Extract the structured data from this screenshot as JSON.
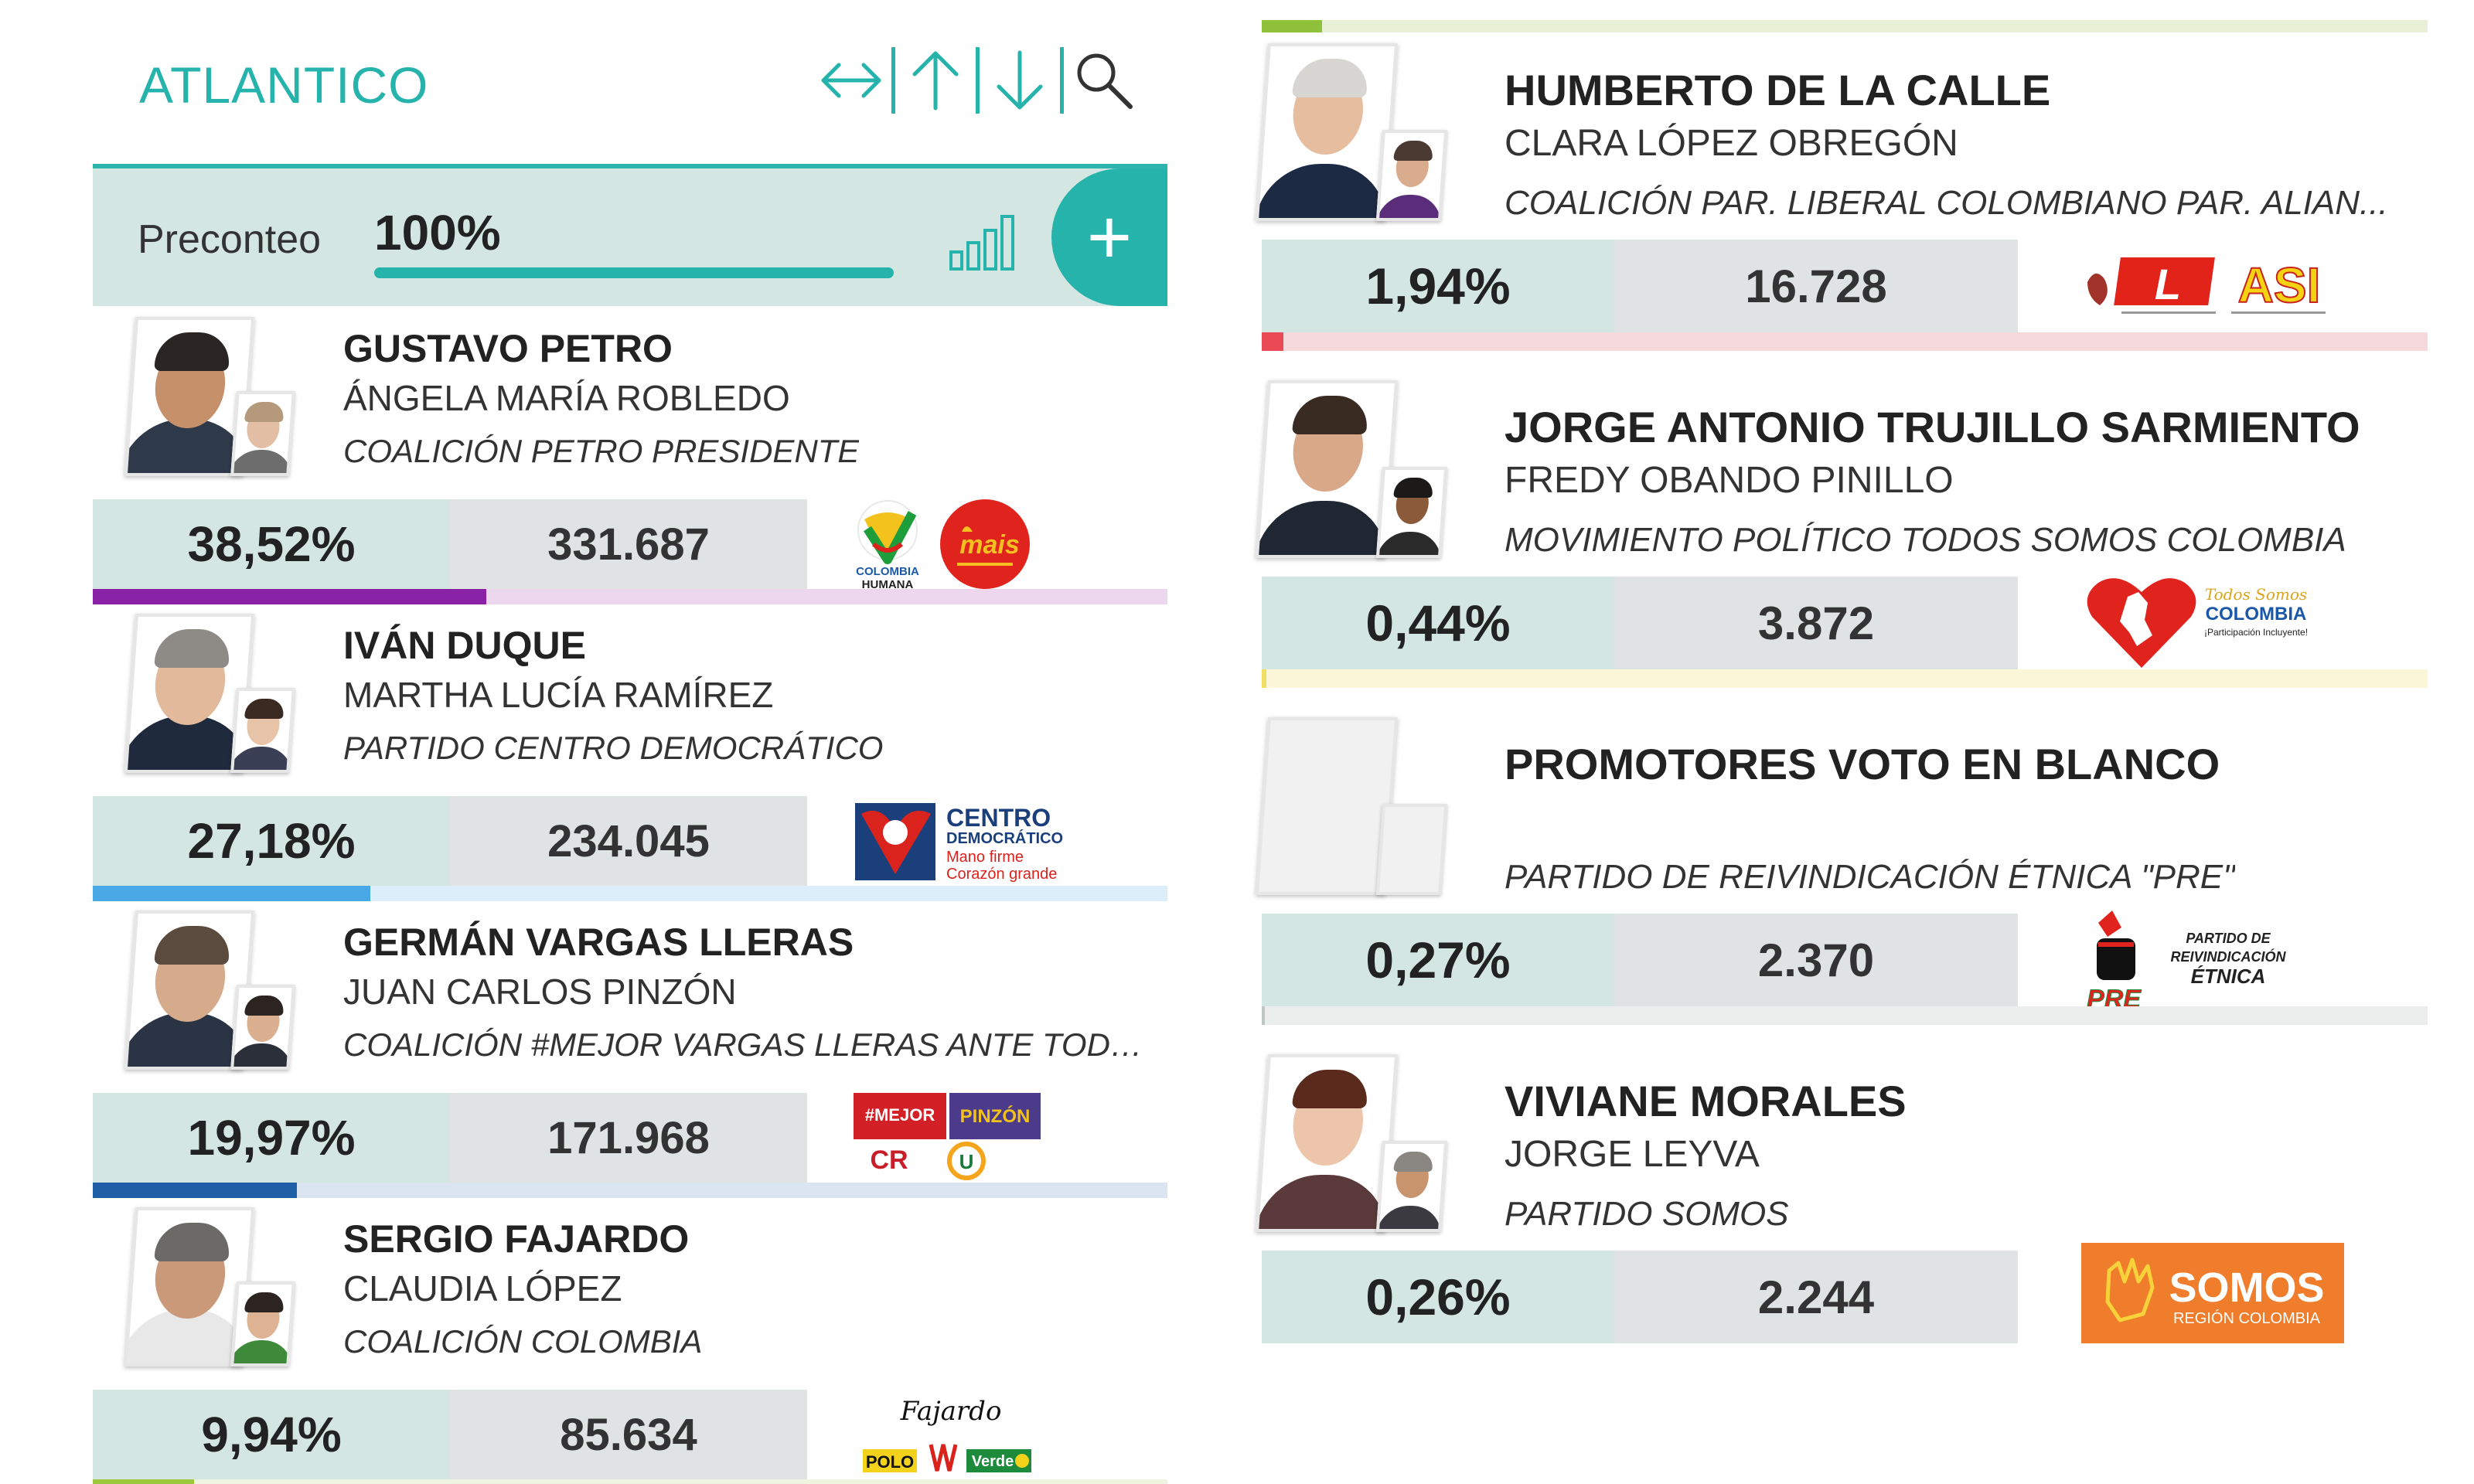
{
  "header": {
    "title": "ATLANTICO",
    "tools": [
      "horizontal-arrows-icon",
      "arrow-up-icon",
      "arrow-down-icon",
      "search-icon"
    ]
  },
  "preconteo": {
    "label": "Preconteo",
    "percent": "100%",
    "progress": 1.0,
    "icons": [
      "bar-chart-icon",
      "plus-icon"
    ],
    "add_label": "+"
  },
  "left_candidates": [
    {
      "name": "GUSTAVO PETRO",
      "vice": "ÁNGELA MARÍA ROBLEDO",
      "party": "COALICIÓN PETRO PRESIDENTE",
      "percent": "38,52%",
      "votes": "331.687",
      "share": 0.3852,
      "bar_color": "#8a22a8",
      "track_color": "#ecd7ef",
      "logos": [
        {
          "text": "COLOMBIA HUMANA",
          "type": "colombia-humana"
        },
        {
          "text": "mais",
          "type": "mais"
        }
      ]
    },
    {
      "name": "IVÁN DUQUE",
      "vice": "MARTHA LUCÍA RAMÍREZ",
      "party": "PARTIDO CENTRO DEMOCRÁTICO",
      "percent": "27,18%",
      "votes": "234.045",
      "share": 0.2718,
      "bar_color": "#49a9e6",
      "track_color": "#dbeef9",
      "logos": [
        {
          "title": "CENTRO",
          "subtitle": "DEMOCRÁTICO",
          "line3": "Mano firme",
          "line4": "Corazón grande",
          "type": "centro"
        }
      ]
    },
    {
      "name": "GERMÁN VARGAS LLERAS",
      "vice": "JUAN CARLOS PINZÓN",
      "party": "COALICIÓN #MEJOR VARGAS LLERAS ANTE TODO C...",
      "percent": "19,97%",
      "votes": "171.968",
      "share": 0.1997,
      "bar_color": "#1f5fa8",
      "track_color": "#dbe5f1",
      "logos": [
        {
          "a": "#MEJOR",
          "b": "PINZÓN",
          "c": "CR",
          "d": "U",
          "type": "vargas"
        }
      ]
    },
    {
      "name": "SERGIO FAJARDO",
      "vice": "CLAUDIA LÓPEZ",
      "party": "COALICIÓN COLOMBIA",
      "percent": "9,94%",
      "votes": "85.634",
      "share": 0.0994,
      "bar_color": "#9bc83c",
      "track_color": "#eef4df",
      "logos": [
        {
          "sig": "Fajardo",
          "polo": "POLO",
          "verde": "Verde",
          "type": "fajardo"
        }
      ]
    }
  ],
  "right_candidates": [
    {
      "name": "HUMBERTO DE LA CALLE",
      "vice": "CLARA LÓPEZ OBREGÓN",
      "party": "COALICIÓN PAR. LIBERAL COLOMBIANO PAR. ALIAN...",
      "percent": "1,94%",
      "votes": "16.728",
      "share": 0.0194,
      "bar_color": "#e94a55",
      "track_color": "#f6d9dc",
      "logos": [
        {
          "l": "L",
          "asi": "ASI",
          "type": "liberal"
        }
      ]
    },
    {
      "name": "JORGE ANTONIO TRUJILLO SARMIENTO",
      "vice": "FREDY OBANDO PINILLO",
      "party": "MOVIMIENTO POLÍTICO TODOS SOMOS COLOMBIA",
      "percent": "0,44%",
      "votes": "3.872",
      "share": 0.0044,
      "bar_color": "#f1df60",
      "track_color": "#fbf6d8",
      "logos": [
        {
          "a": "Todos Somos",
          "b": "COLOMBIA",
          "c": "¡Participación Incluyente!",
          "type": "todos"
        }
      ]
    },
    {
      "name": "PROMOTORES VOTO EN BLANCO",
      "vice": "",
      "party": "PARTIDO DE REIVINDICACIÓN ÉTNICA \"PRE\"",
      "percent": "0,27%",
      "votes": "2.370",
      "share": 0.0027,
      "bar_color": "#bfc7c5",
      "track_color": "#eceeee",
      "logos": [
        {
          "pre": "PRE",
          "l1": "PARTIDO DE",
          "l2": "REIVINDICACIÓN",
          "l3": "ÉTNICA",
          "type": "pre"
        }
      ]
    },
    {
      "name": "VIVIANE MORALES",
      "vice": "JORGE LEYVA",
      "party": "PARTIDO SOMOS",
      "percent": "0,26%",
      "votes": "2.244",
      "share": 0.0026,
      "bar_color": "#ffffff",
      "track_color": "#ffffff",
      "logos": [
        {
          "a": "SOMOS",
          "b": "REGIÓN COLOMBIA",
          "type": "somos"
        }
      ]
    }
  ],
  "colors": {
    "accent": "#25b3ac",
    "pct_bg": "#d4e6e1",
    "votes_bg": "#dfe3e3"
  }
}
